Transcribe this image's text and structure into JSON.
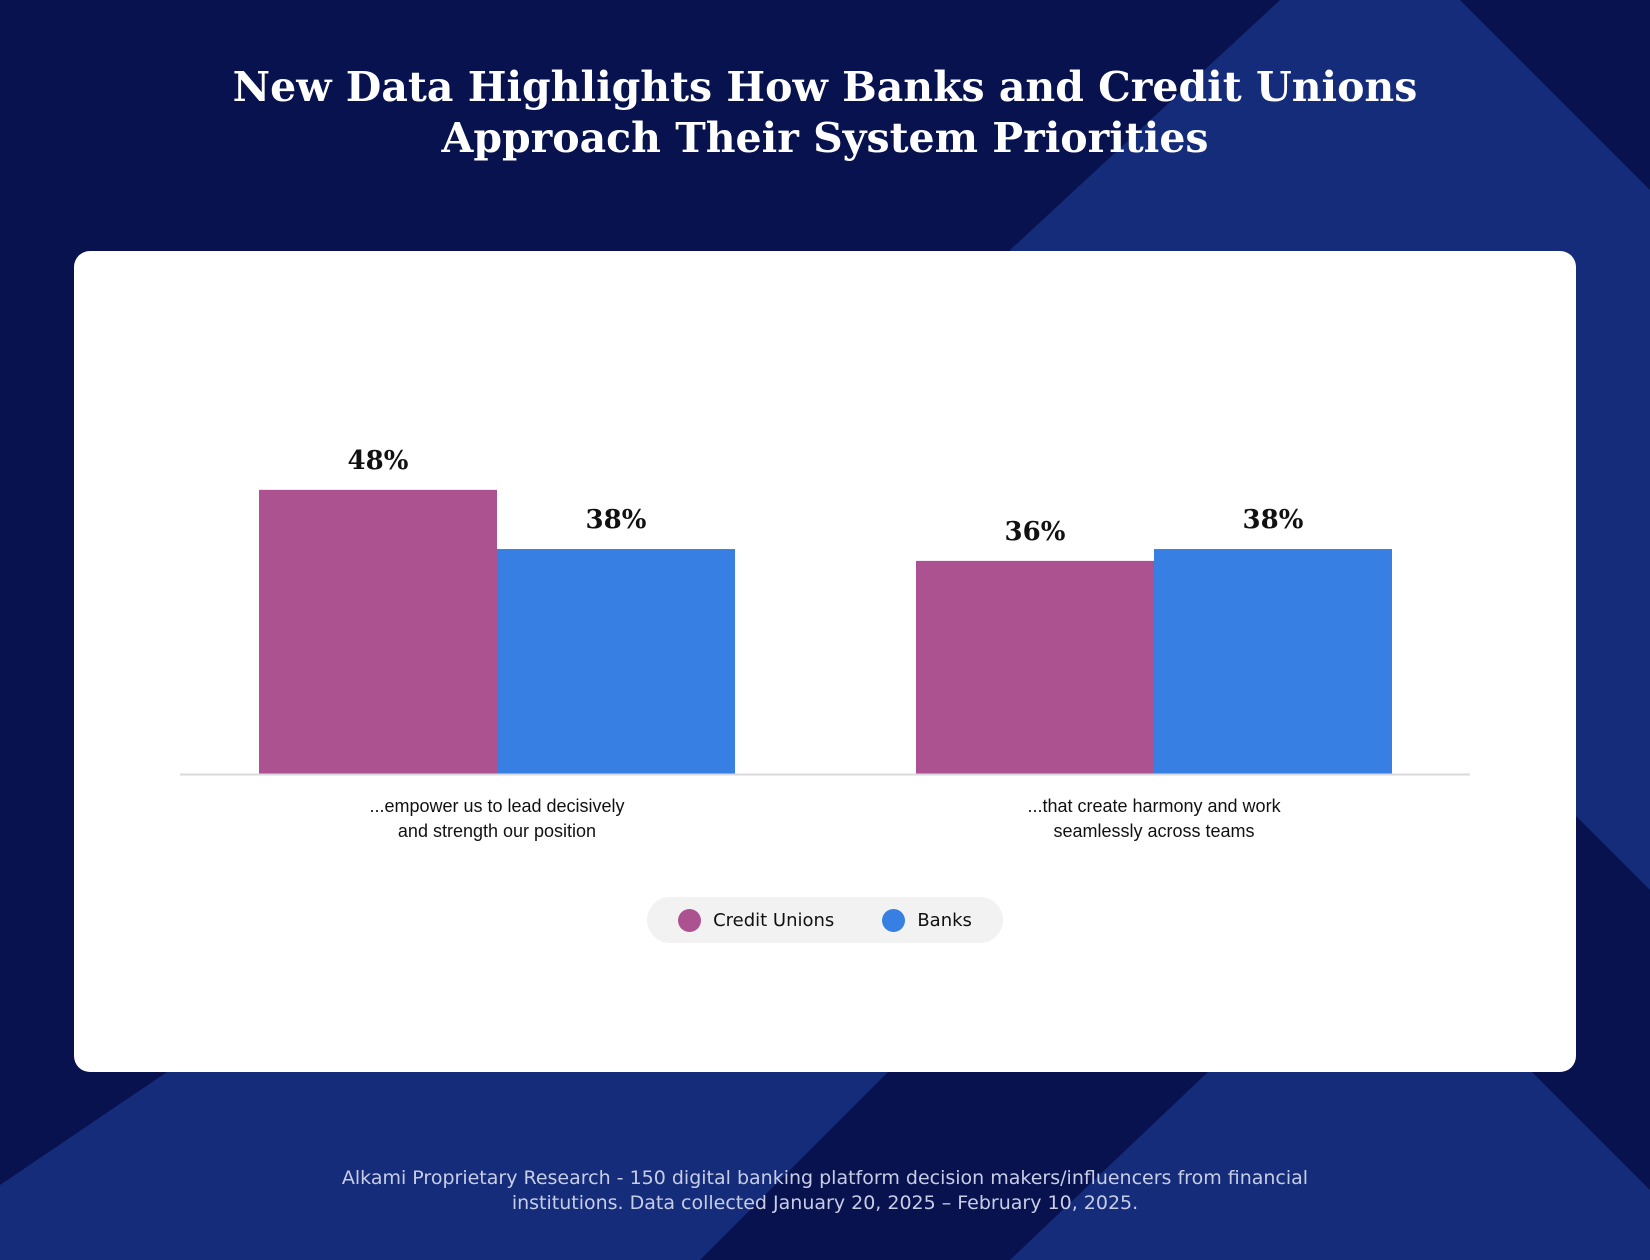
{
  "header": {
    "title_line_1": "New Data Highlights How Banks and Credit Unions",
    "title_line_2": "Approach Their System Priorities"
  },
  "chart_data": {
    "type": "bar",
    "categories": [
      [
        "...empower us to lead decisively",
        "and strength our position"
      ],
      [
        "...that create harmony and work",
        "seamlessly across teams"
      ]
    ],
    "series": [
      {
        "name": "Credit Unions",
        "color": "#ad5290",
        "values": [
          48,
          36
        ],
        "labels": [
          "48%",
          "36%"
        ]
      },
      {
        "name": "Banks",
        "color": "#377fe3",
        "values": [
          38,
          38
        ],
        "labels": [
          "38%",
          "38%"
        ]
      }
    ],
    "ylim": [
      0,
      60
    ],
    "grid": false,
    "legend_position": "bottom-center"
  },
  "colors": {
    "background": "#07124f",
    "stripe": "#142c7a",
    "card": "#ffffff",
    "axis": "#d9d9de"
  },
  "footer": {
    "line_1": "Alkami Proprietary Research - 150 digital banking platform decision makers/influencers from financial",
    "line_2": "institutions. Data collected January 20, 2025 – February 10, 2025."
  }
}
